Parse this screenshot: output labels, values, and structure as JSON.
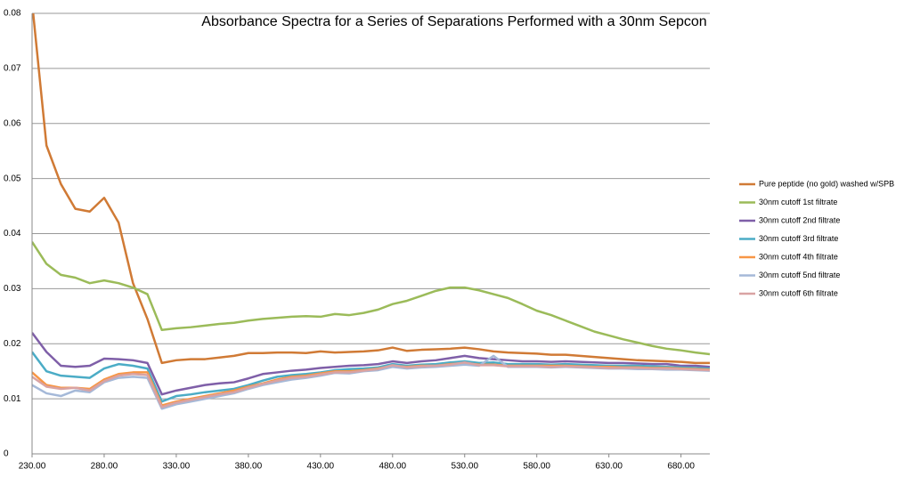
{
  "chart_data": {
    "type": "line",
    "title": "Absorbance Spectra for a Series of Separations Performed with a 30nm Sepcon",
    "x": [
      230,
      240,
      250,
      260,
      270,
      280,
      290,
      300,
      310,
      320,
      330,
      340,
      350,
      360,
      370,
      380,
      390,
      400,
      410,
      420,
      430,
      440,
      450,
      460,
      470,
      480,
      490,
      500,
      510,
      520,
      530,
      540,
      550,
      560,
      570,
      580,
      590,
      600,
      610,
      620,
      630,
      640,
      650,
      660,
      670,
      680,
      690,
      700
    ],
    "xlim": [
      230,
      700
    ],
    "xticks": [
      {
        "value": 230,
        "label": "230.00"
      },
      {
        "value": 280,
        "label": "280.00"
      },
      {
        "value": 330,
        "label": "330.00"
      },
      {
        "value": 380,
        "label": "380.00"
      },
      {
        "value": 430,
        "label": "430.00"
      },
      {
        "value": 480,
        "label": "480.00"
      },
      {
        "value": 530,
        "label": "530.00"
      },
      {
        "value": 580,
        "label": "580.00"
      },
      {
        "value": 630,
        "label": "630.00"
      },
      {
        "value": 680,
        "label": "680.00"
      }
    ],
    "ylim": [
      0,
      0.08
    ],
    "yticks": [
      0,
      0.01,
      0.02,
      0.03,
      0.04,
      0.05,
      0.06,
      0.07,
      0.08
    ],
    "grid": true,
    "legend": "right",
    "series": [
      {
        "name": "Pure peptide (no gold) washed w/SPB",
        "color": "#d07a35",
        "values": [
          0.082,
          0.056,
          0.049,
          0.0445,
          0.044,
          0.0465,
          0.042,
          0.031,
          0.0245,
          0.0165,
          0.017,
          0.0172,
          0.0172,
          0.0175,
          0.0178,
          0.0183,
          0.0183,
          0.0184,
          0.0184,
          0.0183,
          0.0186,
          0.0184,
          0.0185,
          0.0186,
          0.0188,
          0.0193,
          0.0187,
          0.0189,
          0.019,
          0.0191,
          0.0193,
          0.019,
          0.0186,
          0.0184,
          0.0183,
          0.0182,
          0.018,
          0.018,
          0.0178,
          0.0176,
          0.0174,
          0.0172,
          0.017,
          0.0169,
          0.0168,
          0.0167,
          0.0165,
          0.0165
        ]
      },
      {
        "name": "30nm cutoff 1st filtrate",
        "color": "#9bbb59",
        "values": [
          0.0385,
          0.0345,
          0.0325,
          0.032,
          0.031,
          0.0315,
          0.031,
          0.0302,
          0.029,
          0.0225,
          0.0228,
          0.023,
          0.0233,
          0.0236,
          0.0238,
          0.0242,
          0.0245,
          0.0247,
          0.0249,
          0.025,
          0.0249,
          0.0254,
          0.0252,
          0.0256,
          0.0262,
          0.0272,
          0.0278,
          0.0287,
          0.0296,
          0.0302,
          0.0302,
          0.0297,
          0.029,
          0.0283,
          0.0272,
          0.026,
          0.0252,
          0.0242,
          0.0232,
          0.0222,
          0.0215,
          0.0208,
          0.0202,
          0.0196,
          0.0191,
          0.0188,
          0.0184,
          0.0181
        ]
      },
      {
        "name": "30nm cutoff 2nd filtrate",
        "color": "#7f5fa8",
        "values": [
          0.022,
          0.0185,
          0.016,
          0.0158,
          0.016,
          0.0173,
          0.0172,
          0.017,
          0.0165,
          0.0108,
          0.0115,
          0.012,
          0.0125,
          0.0128,
          0.013,
          0.0137,
          0.0145,
          0.0148,
          0.0151,
          0.0153,
          0.0156,
          0.0158,
          0.016,
          0.0161,
          0.0163,
          0.0168,
          0.0165,
          0.0168,
          0.017,
          0.0174,
          0.0178,
          0.0174,
          0.0172,
          0.017,
          0.0168,
          0.0168,
          0.0167,
          0.0168,
          0.0167,
          0.0166,
          0.0165,
          0.0165,
          0.0164,
          0.0163,
          0.0163,
          0.016,
          0.016,
          0.0158
        ]
      },
      {
        "name": "30nm cutoff 3rd filtrate",
        "color": "#4bacc6",
        "values": [
          0.0185,
          0.015,
          0.0142,
          0.014,
          0.0138,
          0.0155,
          0.0163,
          0.016,
          0.0155,
          0.0095,
          0.0105,
          0.0108,
          0.0112,
          0.0115,
          0.0118,
          0.0125,
          0.0133,
          0.014,
          0.0143,
          0.0145,
          0.0148,
          0.0152,
          0.0154,
          0.0155,
          0.0157,
          0.0163,
          0.016,
          0.0162,
          0.0163,
          0.0166,
          0.0168,
          0.0165,
          0.0166,
          0.0163,
          0.0163,
          0.0163,
          0.0162,
          0.0163,
          0.0162,
          0.0161,
          0.016,
          0.016,
          0.016,
          0.0159,
          0.0158,
          0.0157,
          0.0156,
          0.0155
        ]
      },
      {
        "name": "30nm cutoff 4th filtrate",
        "color": "#f79646",
        "values": [
          0.0148,
          0.0125,
          0.012,
          0.012,
          0.0118,
          0.0135,
          0.0145,
          0.0148,
          0.0148,
          0.0088,
          0.0095,
          0.01,
          0.0105,
          0.011,
          0.0115,
          0.0122,
          0.0128,
          0.0135,
          0.014,
          0.0142,
          0.0146,
          0.015,
          0.015,
          0.0152,
          0.0155,
          0.016,
          0.0158,
          0.016,
          0.016,
          0.0163,
          0.0165,
          0.0162,
          0.0162,
          0.016,
          0.016,
          0.016,
          0.016,
          0.016,
          0.0159,
          0.0158,
          0.0158,
          0.0157,
          0.0157,
          0.0156,
          0.0156,
          0.0155,
          0.0154,
          0.0153
        ]
      },
      {
        "name": "30nm cutoff 5nd filtrate",
        "color": "#a5b9d8",
        "values": [
          0.0125,
          0.011,
          0.0105,
          0.0115,
          0.0112,
          0.013,
          0.0138,
          0.014,
          0.0138,
          0.0082,
          0.009,
          0.0095,
          0.01,
          0.0105,
          0.011,
          0.0118,
          0.0125,
          0.013,
          0.0135,
          0.0138,
          0.0142,
          0.0147,
          0.0146,
          0.015,
          0.0152,
          0.0158,
          0.0155,
          0.0157,
          0.0158,
          0.016,
          0.0162,
          0.016,
          0.0178,
          0.0158,
          0.0158,
          0.0158,
          0.0157,
          0.0158,
          0.0157,
          0.0156,
          0.0155,
          0.0155,
          0.0154,
          0.0154,
          0.0153,
          0.0153,
          0.0152,
          0.0151
        ]
      },
      {
        "name": "30nm cutoff 6th filtrate",
        "color": "#d9a3a3",
        "values": [
          0.014,
          0.0122,
          0.0118,
          0.012,
          0.0115,
          0.0132,
          0.0142,
          0.0145,
          0.0143,
          0.0085,
          0.0093,
          0.0098,
          0.0103,
          0.0108,
          0.0112,
          0.012,
          0.0127,
          0.0133,
          0.0138,
          0.014,
          0.0144,
          0.0148,
          0.0148,
          0.0151,
          0.0154,
          0.0161,
          0.0157,
          0.0159,
          0.016,
          0.0162,
          0.0166,
          0.0161,
          0.0161,
          0.0159,
          0.0159,
          0.0159,
          0.0158,
          0.0159,
          0.0158,
          0.0157,
          0.0156,
          0.0156,
          0.0156,
          0.0155,
          0.0155,
          0.0154,
          0.0153,
          0.0152
        ]
      }
    ]
  }
}
